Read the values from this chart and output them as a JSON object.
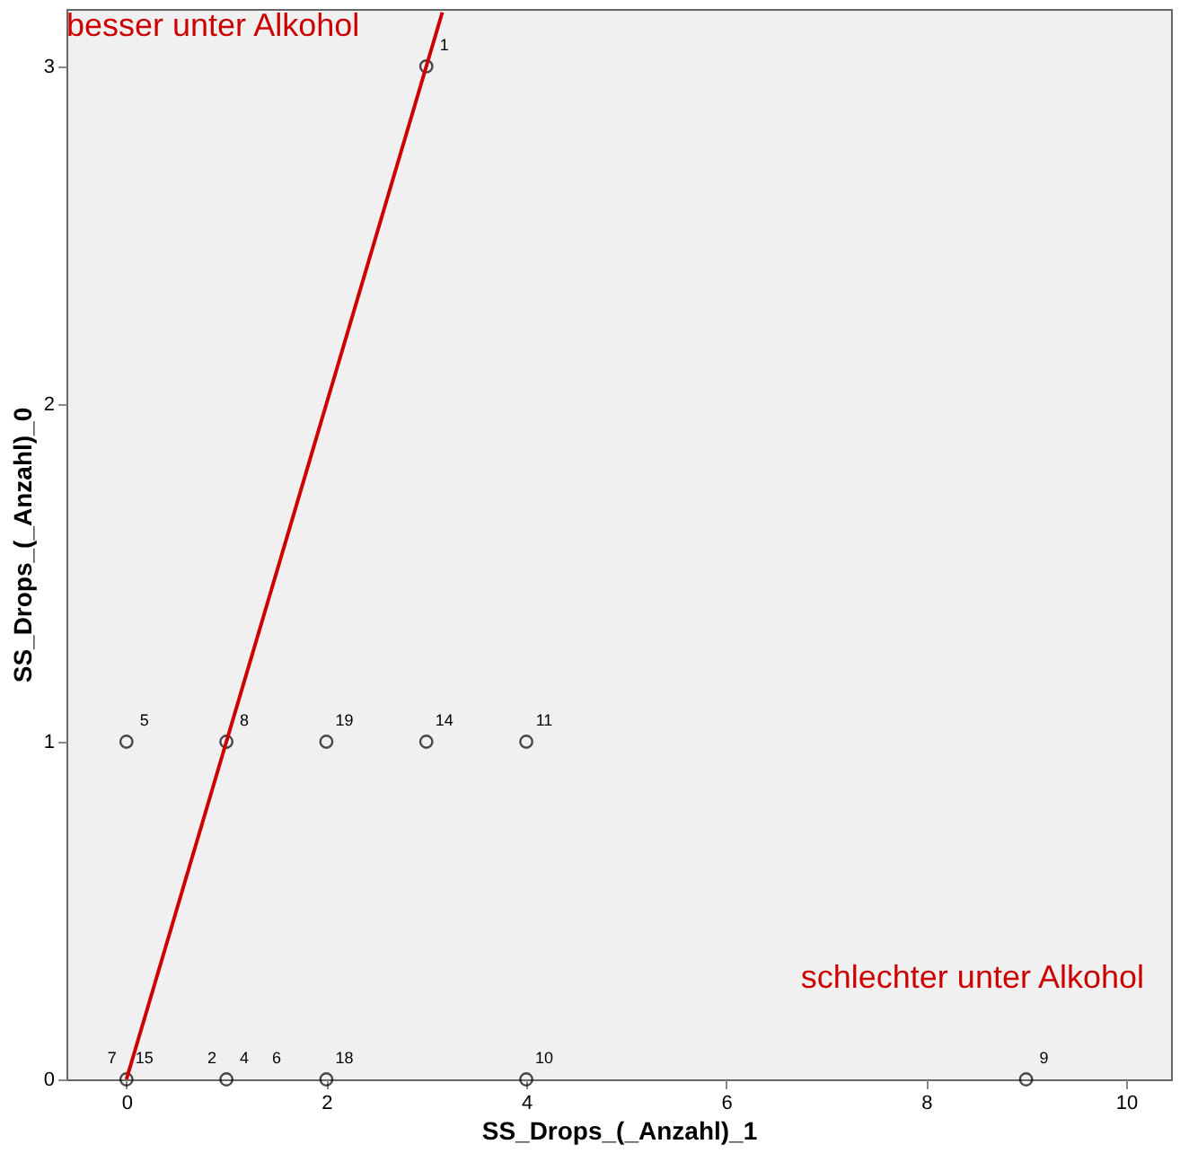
{
  "chart_data": {
    "type": "scatter",
    "xlabel": "SS_Drops_(_Anzahl)_1",
    "ylabel": "SS_Drops_(_Anzahl)_0",
    "series": [
      {
        "color": "#000000",
        "x": [
          3,
          0,
          1,
          2,
          3,
          4,
          0,
          1,
          2,
          4,
          9
        ],
        "values": [
          3,
          1,
          1,
          1,
          1,
          1,
          0,
          0,
          0,
          0,
          0
        ]
      },
      {
        "type": "line",
        "color": "#cc0000",
        "marker": "none",
        "line_style": "solid",
        "x": [
          0,
          3.16
        ],
        "values": [
          0,
          3.16
        ]
      }
    ],
    "marker": "circle",
    "grid": false,
    "xlim": [
      -0.6,
      10.45
    ],
    "ylim": [
      0,
      3.17
    ],
    "xticks": [
      0,
      2,
      4,
      6,
      8,
      10
    ],
    "yticks": [
      0,
      1,
      2,
      3
    ],
    "annotations": [
      "besser unter Alkohol",
      "schlechter unter Alkohol",
      {
        "text": "1",
        "x": 3,
        "y": 3
      },
      {
        "text": "5",
        "x": 0,
        "y": 1
      },
      {
        "text": "8",
        "x": 1,
        "y": 1
      },
      {
        "text": "19",
        "x": 2,
        "y": 1
      },
      {
        "text": "14",
        "x": 3,
        "y": 1
      },
      {
        "text": "11",
        "x": 4,
        "y": 1
      },
      {
        "text": "7",
        "x": 0,
        "y": 0
      },
      {
        "text": "15",
        "x": 0,
        "y": 0
      },
      {
        "text": "2",
        "x": 1,
        "y": 0
      },
      {
        "text": "4",
        "x": 1,
        "y": 0
      },
      {
        "text": "6",
        "x": 1,
        "y": 0
      },
      {
        "text": "18",
        "x": 2,
        "y": 0
      },
      {
        "text": "10",
        "x": 4,
        "y": 0
      },
      {
        "text": "9",
        "x": 9,
        "y": 0
      }
    ]
  }
}
